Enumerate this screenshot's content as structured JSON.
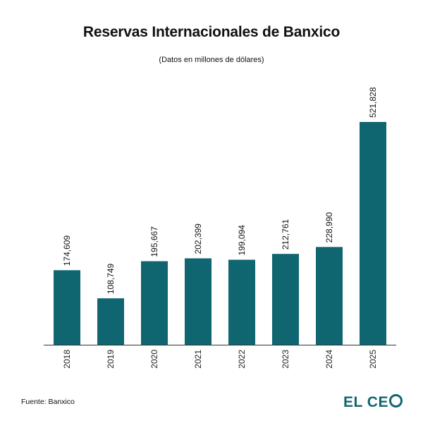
{
  "header": {
    "title": "Reservas Internacionales de Banxico",
    "subtitle": "(Datos en millones de dólares)"
  },
  "footer": {
    "source": "Fuente: Banxico",
    "logo_text": "EL CE",
    "logo_icon": "letter-o-ring-icon"
  },
  "colors": {
    "bar": "#0f6670",
    "logo": "#0f6670",
    "axis": "#333333"
  },
  "chart_data": {
    "type": "bar",
    "title": "Reservas Internacionales de Banxico",
    "subtitle": "(Datos en millones de dólares)",
    "categories": [
      "2018",
      "2019",
      "2020",
      "2021",
      "2022",
      "2023",
      "2024",
      "2025"
    ],
    "values": [
      174609,
      108749,
      195667,
      202399,
      199094,
      212761,
      228990,
      521828
    ],
    "value_labels": [
      "174,609",
      "108,749",
      "195,667",
      "202,399",
      "199,094",
      "212,761",
      "228,990",
      "521,828"
    ],
    "xlabel": "",
    "ylabel": "",
    "ylim": [
      0,
      521828
    ],
    "grid": false,
    "legend": "none",
    "tick_label_rotation": "vertical",
    "value_label_rotation": "vertical"
  }
}
